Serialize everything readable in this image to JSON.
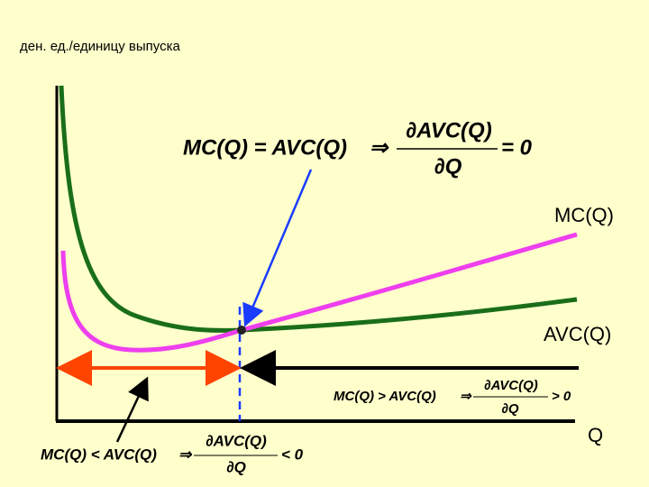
{
  "axis_label": "ден. ед./единицу выпуска",
  "curve_labels": {
    "mc": "MC(Q)",
    "avc": "AVC(Q)",
    "x": "Q"
  },
  "formulas": [
    {
      "condition": "MC(Q) = AVC(Q)",
      "implies": "⇒",
      "numerator": "∂AVC(Q)",
      "denominator": "∂Q",
      "result": "= 0"
    },
    {
      "condition": "MC(Q) > AVC(Q)",
      "implies": "⇒",
      "numerator": "∂AVC(Q)",
      "denominator": "∂Q",
      "result": "> 0"
    },
    {
      "condition": "MC(Q) < AVC(Q)",
      "implies": "⇒",
      "numerator": "∂AVC(Q)",
      "denominator": "∂Q",
      "result": "< 0"
    }
  ]
}
